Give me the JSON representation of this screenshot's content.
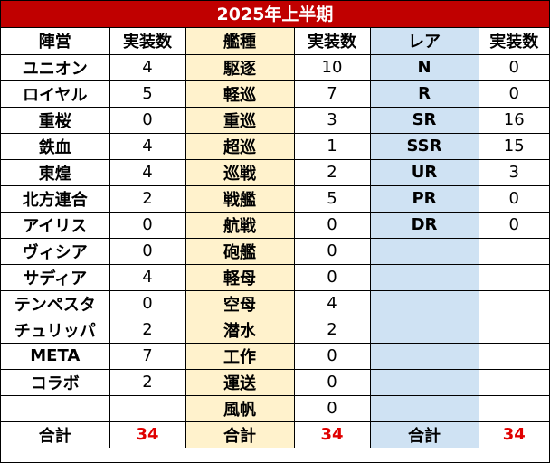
{
  "title": "2025年上半期",
  "headers": {
    "faction": "陣営",
    "faction_count": "実装数",
    "shiptype": "艦種",
    "shiptype_count": "実装数",
    "rarity": "レア",
    "rarity_count": "実装数"
  },
  "rows": [
    {
      "faction": "ユニオン",
      "faction_count": "4",
      "shiptype": "駆逐",
      "shiptype_count": "10",
      "rarity": "N",
      "rarity_count": "0"
    },
    {
      "faction": "ロイヤル",
      "faction_count": "5",
      "shiptype": "軽巡",
      "shiptype_count": "7",
      "rarity": "R",
      "rarity_count": "0"
    },
    {
      "faction": "重桜",
      "faction_count": "0",
      "shiptype": "重巡",
      "shiptype_count": "3",
      "rarity": "SR",
      "rarity_count": "16"
    },
    {
      "faction": "鉄血",
      "faction_count": "4",
      "shiptype": "超巡",
      "shiptype_count": "1",
      "rarity": "SSR",
      "rarity_count": "15"
    },
    {
      "faction": "東煌",
      "faction_count": "4",
      "shiptype": "巡戦",
      "shiptype_count": "2",
      "rarity": "UR",
      "rarity_count": "3"
    },
    {
      "faction": "北方連合",
      "faction_count": "2",
      "shiptype": "戦艦",
      "shiptype_count": "5",
      "rarity": "PR",
      "rarity_count": "0"
    },
    {
      "faction": "アイリス",
      "faction_count": "0",
      "shiptype": "航戦",
      "shiptype_count": "0",
      "rarity": "DR",
      "rarity_count": "0"
    },
    {
      "faction": "ヴィシア",
      "faction_count": "0",
      "shiptype": "砲艦",
      "shiptype_count": "0",
      "rarity": "",
      "rarity_count": ""
    },
    {
      "faction": "サディア",
      "faction_count": "4",
      "shiptype": "軽母",
      "shiptype_count": "0",
      "rarity": "",
      "rarity_count": ""
    },
    {
      "faction": "テンペスタ",
      "faction_count": "0",
      "shiptype": "空母",
      "shiptype_count": "4",
      "rarity": "",
      "rarity_count": ""
    },
    {
      "faction": "チュリッパ",
      "faction_count": "2",
      "shiptype": "潜水",
      "shiptype_count": "2",
      "rarity": "",
      "rarity_count": ""
    },
    {
      "faction": "META",
      "faction_count": "7",
      "shiptype": "工作",
      "shiptype_count": "0",
      "rarity": "",
      "rarity_count": ""
    },
    {
      "faction": "コラボ",
      "faction_count": "2",
      "shiptype": "運送",
      "shiptype_count": "0",
      "rarity": "",
      "rarity_count": ""
    },
    {
      "faction": "",
      "faction_count": "",
      "shiptype": "風帆",
      "shiptype_count": "0",
      "rarity": "",
      "rarity_count": ""
    }
  ],
  "totals": {
    "faction_label": "合計",
    "faction_total": "34",
    "shiptype_label": "合計",
    "shiptype_total": "34",
    "rarity_label": "合計",
    "rarity_total": "34"
  },
  "colors": {
    "title_bg": "#c00000",
    "shiptype_col_bg": "#fff2cc",
    "rarity_col_bg": "#cfe2f3",
    "total_number": "#e00000"
  }
}
